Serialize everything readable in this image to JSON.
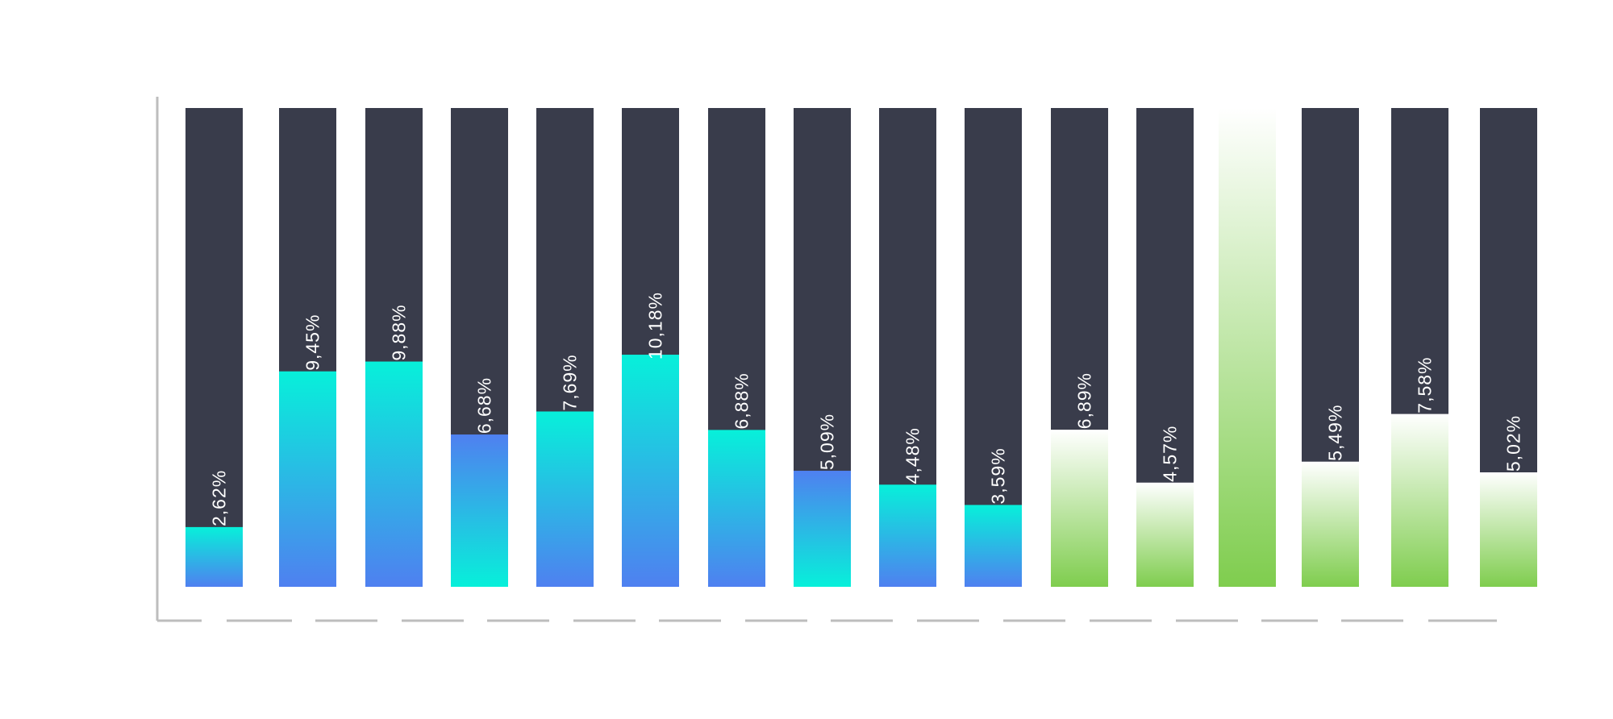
{
  "chart_data": {
    "type": "bar",
    "stacked": true,
    "orientation": "vertical",
    "categories": [
      "",
      "",
      "",
      "",
      "",
      "",
      "",
      "",
      "",
      "",
      "",
      "",
      "",
      "",
      "",
      ""
    ],
    "value_labels": [
      "2,62%",
      "9,45%",
      "9,88%",
      "6,68%",
      "7,69%",
      "10,18%",
      "6,88%",
      "5,09%",
      "4,48%",
      "3,59%",
      "6,89%",
      "4,57%",
      "",
      "5,49%",
      "7,58%",
      "5,02%"
    ],
    "values": [
      2.62,
      9.45,
      9.88,
      6.68,
      7.69,
      10.18,
      6.88,
      5.09,
      4.48,
      3.59,
      6.89,
      4.57,
      21.0,
      5.49,
      7.58,
      5.02
    ],
    "ylim": [
      0,
      21
    ],
    "gradient_direction": [
      "up",
      "up",
      "up",
      "down",
      "up",
      "up",
      "up",
      "down",
      "up",
      "up",
      "green",
      "green",
      "green",
      "green",
      "green",
      "green"
    ],
    "grid": false,
    "legend": "none",
    "title": "",
    "xlabel": "",
    "ylabel": "",
    "colors": {
      "remainder": "#393c4b",
      "cyan": "#07f0da",
      "blue": "#4f80f0",
      "green_bottom": "#7fcd4e",
      "green_top": "#ffffff",
      "axis": "#bdbdbd"
    }
  }
}
